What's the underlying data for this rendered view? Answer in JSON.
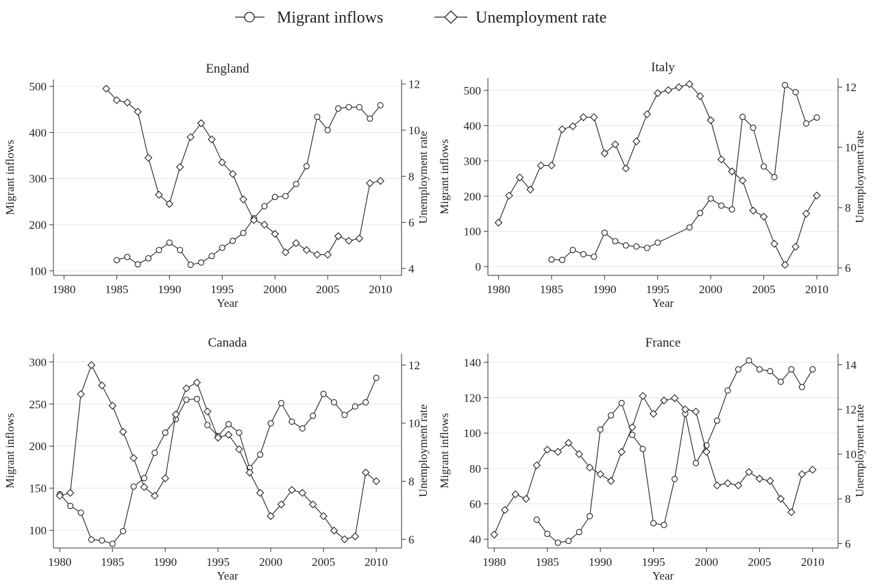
{
  "legend": {
    "items": [
      {
        "label": "Migrant inflows",
        "marker": "circle"
      },
      {
        "label": "Unemployment rate",
        "marker": "diamond"
      }
    ]
  },
  "chart_data": [
    {
      "type": "line",
      "title": "England",
      "xlabel": "Year",
      "ylabel": "Migrant inflows",
      "y2label": "Unemployment rate",
      "xlim": [
        1979,
        2012
      ],
      "ylim": [
        90,
        515
      ],
      "y2lim": [
        3.7,
        12.2
      ],
      "xticks": [
        1980,
        1985,
        1990,
        1995,
        2000,
        2005,
        2010
      ],
      "yticks": [
        100,
        200,
        300,
        400,
        500
      ],
      "y2ticks": [
        4,
        6,
        8,
        10,
        12
      ],
      "grid": true,
      "series": [
        {
          "name": "Migrant inflows",
          "axis": "left",
          "marker": "circle",
          "x": [
            1985,
            1986,
            1987,
            1988,
            1989,
            1990,
            1991,
            1992,
            1993,
            1994,
            1995,
            1996,
            1997,
            1998,
            1999,
            2000,
            2001,
            2002,
            2003,
            2004,
            2005,
            2006,
            2007,
            2008,
            2009,
            2010
          ],
          "values": [
            123,
            130,
            114,
            127,
            145,
            161,
            145,
            113,
            118,
            132,
            150,
            165,
            182,
            214,
            240,
            260,
            262,
            288,
            327,
            434,
            405,
            452,
            455,
            455,
            430,
            459
          ]
        },
        {
          "name": "Unemployment rate",
          "axis": "right",
          "marker": "diamond",
          "x": [
            1984,
            1985,
            1986,
            1987,
            1988,
            1989,
            1990,
            1991,
            1992,
            1993,
            1994,
            1995,
            1996,
            1997,
            1998,
            1999,
            2000,
            2001,
            2002,
            2003,
            2004,
            2005,
            2006,
            2007,
            2008,
            2009,
            2010
          ],
          "values": [
            11.8,
            11.3,
            11.2,
            10.8,
            8.8,
            7.2,
            6.8,
            8.4,
            9.7,
            10.3,
            9.6,
            8.6,
            8.1,
            7.0,
            6.1,
            5.9,
            5.5,
            4.7,
            5.1,
            4.8,
            4.6,
            4.6,
            5.4,
            5.2,
            5.3,
            7.7,
            7.8
          ]
        }
      ]
    },
    {
      "type": "line",
      "title": "Italy",
      "xlabel": "Year",
      "ylabel": "Migrant inflows",
      "y2label": "Unemployment rate",
      "xlim": [
        1979,
        2012
      ],
      "ylim": [
        -25,
        535
      ],
      "y2lim": [
        5.75,
        12.3
      ],
      "xticks": [
        1980,
        1985,
        1990,
        1995,
        2000,
        2005,
        2010
      ],
      "yticks": [
        0,
        100,
        200,
        300,
        400,
        500
      ],
      "y2ticks": [
        6,
        8,
        10,
        12
      ],
      "grid": true,
      "series": [
        {
          "name": "Migrant inflows",
          "axis": "left",
          "marker": "circle",
          "x": [
            1985,
            1986,
            1987,
            1988,
            1989,
            1990,
            1991,
            1992,
            1993,
            1994,
            1995,
            1998,
            1999,
            2000,
            2001,
            2002,
            2003,
            2004,
            2005,
            2006,
            2007,
            2008,
            2009,
            2010
          ],
          "values": [
            20,
            19,
            47,
            35,
            28,
            96,
            72,
            60,
            57,
            53,
            68,
            111,
            152,
            193,
            173,
            162,
            425,
            394,
            284,
            254,
            515,
            495,
            406,
            423
          ]
        },
        {
          "name": "Unemployment rate",
          "axis": "right",
          "marker": "diamond",
          "x": [
            1980,
            1981,
            1982,
            1983,
            1984,
            1985,
            1986,
            1987,
            1988,
            1989,
            1990,
            1991,
            1992,
            1993,
            1994,
            1995,
            1996,
            1997,
            1998,
            1999,
            2000,
            2001,
            2002,
            2003,
            2004,
            2005,
            2006,
            2007,
            2008,
            2009,
            2010
          ],
          "values": [
            7.5,
            8.4,
            9.0,
            8.6,
            9.4,
            9.4,
            10.6,
            10.7,
            11.0,
            11.0,
            9.8,
            10.1,
            9.3,
            10.2,
            11.1,
            11.8,
            11.9,
            12.0,
            12.1,
            11.7,
            10.9,
            9.6,
            9.2,
            8.9,
            7.9,
            7.7,
            6.8,
            6.1,
            6.7,
            7.8,
            8.4
          ]
        }
      ]
    },
    {
      "type": "line",
      "title": "Canada",
      "xlabel": "Year",
      "ylabel": "Migrant inflows",
      "y2label": "Unemployment rate",
      "xlim": [
        1979.4,
        2012.4
      ],
      "ylim": [
        79,
        310
      ],
      "y2lim": [
        5.7,
        12.4
      ],
      "xticks": [
        1980,
        1985,
        1990,
        1995,
        2000,
        2005,
        2010
      ],
      "yticks": [
        100,
        150,
        200,
        250,
        300
      ],
      "y2ticks": [
        6,
        8,
        10,
        12
      ],
      "grid": true,
      "series": [
        {
          "name": "Migrant inflows",
          "axis": "left",
          "marker": "circle",
          "x": [
            1980,
            1981,
            1982,
            1983,
            1984,
            1985,
            1986,
            1987,
            1988,
            1989,
            1990,
            1991,
            1992,
            1993,
            1994,
            1995,
            1996,
            1997,
            1998,
            1999,
            2000,
            2001,
            2002,
            2003,
            2004,
            2005,
            2006,
            2007,
            2008,
            2009,
            2010
          ],
          "values": [
            143,
            129,
            121,
            89,
            88,
            84,
            99,
            152,
            162,
            192,
            216,
            232,
            255,
            256,
            225,
            212,
            226,
            216,
            174,
            190,
            227,
            251,
            229,
            221,
            236,
            262,
            252,
            237,
            247,
            252,
            281
          ]
        },
        {
          "name": "Unemployment rate",
          "axis": "right",
          "marker": "diamond",
          "x": [
            1980,
            1981,
            1982,
            1983,
            1984,
            1985,
            1986,
            1987,
            1988,
            1989,
            1990,
            1991,
            1992,
            1993,
            1994,
            1995,
            1996,
            1997,
            1998,
            1999,
            2000,
            2001,
            2002,
            2003,
            2004,
            2005,
            2006,
            2007,
            2008,
            2009,
            2010
          ],
          "values": [
            7.5,
            7.6,
            11.0,
            12.0,
            11.3,
            10.6,
            9.7,
            8.8,
            7.8,
            7.5,
            8.1,
            10.3,
            11.2,
            11.4,
            10.4,
            9.5,
            9.6,
            9.1,
            8.3,
            7.6,
            6.8,
            7.2,
            7.7,
            7.6,
            7.2,
            6.8,
            6.3,
            6.0,
            6.1,
            8.3,
            8.0
          ]
        }
      ]
    },
    {
      "type": "line",
      "title": "France",
      "xlabel": "Year",
      "ylabel": "Migrant inflows",
      "y2label": "Unemployment rate",
      "xlim": [
        1979.4,
        2012.4
      ],
      "ylim": [
        35,
        145
      ],
      "y2lim": [
        5.8,
        14.5
      ],
      "xticks": [
        1980,
        1985,
        1990,
        1995,
        2000,
        2005,
        2010
      ],
      "yticks": [
        40,
        60,
        80,
        100,
        120,
        140
      ],
      "y2ticks": [
        6,
        8,
        10,
        12,
        14
      ],
      "grid": true,
      "series": [
        {
          "name": "Migrant inflows",
          "axis": "left",
          "marker": "circle",
          "x": [
            1984,
            1985,
            1986,
            1987,
            1988,
            1989,
            1990,
            1991,
            1992,
            1993,
            1994,
            1995,
            1996,
            1997,
            1998,
            1999,
            2000,
            2001,
            2002,
            2003,
            2004,
            2005,
            2006,
            2007,
            2008,
            2009,
            2010
          ],
          "values": [
            51,
            43,
            38,
            39,
            44,
            53,
            102,
            110,
            117,
            99,
            91,
            49,
            48,
            74,
            111,
            83,
            93,
            107,
            124,
            136,
            141,
            136,
            135,
            129,
            136,
            126,
            136
          ]
        },
        {
          "name": "Unemployment rate",
          "axis": "right",
          "marker": "diamond",
          "x": [
            1980,
            1981,
            1982,
            1983,
            1984,
            1985,
            1986,
            1987,
            1988,
            1989,
            1990,
            1991,
            1992,
            1993,
            1994,
            1995,
            1996,
            1997,
            1998,
            1999,
            2000,
            2001,
            2002,
            2003,
            2004,
            2005,
            2006,
            2007,
            2008,
            2009,
            2010
          ],
          "values": [
            6.4,
            7.5,
            8.2,
            8.0,
            9.5,
            10.2,
            10.1,
            10.5,
            10.0,
            9.4,
            9.1,
            8.8,
            10.1,
            11.2,
            12.6,
            11.8,
            12.4,
            12.5,
            12.0,
            11.9,
            10.1,
            8.6,
            8.7,
            8.6,
            9.2,
            8.9,
            8.8,
            8.0,
            7.4,
            9.1,
            9.3
          ]
        }
      ]
    }
  ]
}
